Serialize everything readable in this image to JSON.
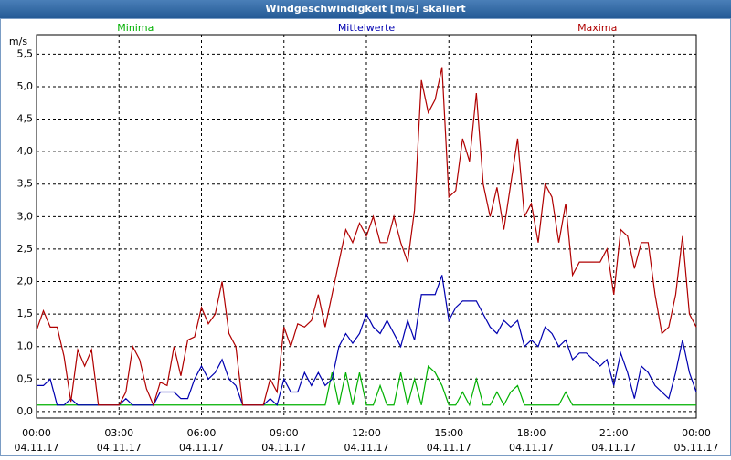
{
  "chart_data": {
    "type": "line",
    "title": "Windgeschwindigkeit [m/s] skaliert",
    "y_label": "m/s",
    "x": [
      0,
      0.25,
      0.5,
      0.75,
      1,
      1.25,
      1.5,
      1.75,
      2,
      2.25,
      2.5,
      2.75,
      3,
      3.25,
      3.5,
      3.75,
      4,
      4.25,
      4.5,
      4.75,
      5,
      5.25,
      5.5,
      5.75,
      6,
      6.25,
      6.5,
      6.75,
      7,
      7.25,
      7.5,
      7.75,
      8,
      8.25,
      8.5,
      8.75,
      9,
      9.25,
      9.5,
      9.75,
      10,
      10.25,
      10.5,
      10.75,
      11,
      11.25,
      11.5,
      11.75,
      12,
      12.25,
      12.5,
      12.75,
      13,
      13.25,
      13.5,
      13.75,
      14,
      14.25,
      14.5,
      14.75,
      15,
      15.25,
      15.5,
      15.75,
      16,
      16.25,
      16.5,
      16.75,
      17,
      17.25,
      17.5,
      17.75,
      18,
      18.25,
      18.5,
      18.75,
      19,
      19.25,
      19.5,
      19.75,
      20,
      20.25,
      20.5,
      20.75,
      21,
      21.25,
      21.5,
      21.75,
      22,
      22.25,
      22.5,
      22.75,
      23,
      23.25,
      23.5,
      23.75,
      24
    ],
    "series": [
      {
        "name": "Minima",
        "color": "#00b000",
        "values": [
          0.1,
          0.1,
          0.1,
          0.1,
          0.1,
          0.1,
          0.1,
          0.1,
          0.1,
          0.1,
          0.1,
          0.1,
          0.1,
          0.1,
          0.1,
          0.1,
          0.1,
          0.1,
          0.1,
          0.1,
          0.1,
          0.1,
          0.1,
          0.1,
          0.1,
          0.1,
          0.1,
          0.1,
          0.1,
          0.1,
          0.1,
          0.1,
          0.1,
          0.1,
          0.1,
          0.1,
          0.1,
          0.1,
          0.1,
          0.1,
          0.1,
          0.1,
          0.1,
          0.6,
          0.1,
          0.6,
          0.1,
          0.6,
          0.1,
          0.1,
          0.4,
          0.1,
          0.1,
          0.6,
          0.1,
          0.5,
          0.1,
          0.7,
          0.6,
          0.4,
          0.1,
          0.1,
          0.3,
          0.1,
          0.5,
          0.1,
          0.1,
          0.3,
          0.1,
          0.3,
          0.4,
          0.1,
          0.1,
          0.1,
          0.1,
          0.1,
          0.1,
          0.3,
          0.1,
          0.1,
          0.1,
          0.1,
          0.1,
          0.1,
          0.1,
          0.1,
          0.1,
          0.1,
          0.1,
          0.1,
          0.1,
          0.1,
          0.1,
          0.1,
          0.1,
          0.1,
          0.1
        ]
      },
      {
        "name": "Mittelwerte",
        "color": "#0000b0",
        "values": [
          0.4,
          0.4,
          0.5,
          0.1,
          0.1,
          0.2,
          0.1,
          0.1,
          0.1,
          0.1,
          0.1,
          0.1,
          0.1,
          0.2,
          0.1,
          0.1,
          0.1,
          0.1,
          0.3,
          0.3,
          0.3,
          0.2,
          0.2,
          0.5,
          0.7,
          0.5,
          0.6,
          0.8,
          0.5,
          0.4,
          0.1,
          0.1,
          0.1,
          0.1,
          0.2,
          0.1,
          0.5,
          0.3,
          0.3,
          0.6,
          0.4,
          0.6,
          0.4,
          0.5,
          1.0,
          1.2,
          1.05,
          1.2,
          1.5,
          1.3,
          1.2,
          1.4,
          1.2,
          1.0,
          1.4,
          1.1,
          1.8,
          1.8,
          1.8,
          2.1,
          1.4,
          1.6,
          1.7,
          1.7,
          1.7,
          1.5,
          1.3,
          1.2,
          1.4,
          1.3,
          1.4,
          1.0,
          1.1,
          1.0,
          1.3,
          1.2,
          1.0,
          1.1,
          0.8,
          0.9,
          0.9,
          0.8,
          0.7,
          0.8,
          0.4,
          0.9,
          0.6,
          0.2,
          0.7,
          0.6,
          0.4,
          0.3,
          0.2,
          0.6,
          1.1,
          0.6,
          0.3
        ]
      },
      {
        "name": "Maxima",
        "color": "#b00000",
        "values": [
          1.25,
          1.55,
          1.3,
          1.3,
          0.85,
          0.15,
          0.95,
          0.7,
          0.95,
          0.1,
          0.1,
          0.1,
          0.1,
          0.3,
          1.0,
          0.8,
          0.35,
          0.1,
          0.45,
          0.4,
          1.0,
          0.55,
          1.1,
          1.15,
          1.6,
          1.35,
          1.5,
          2.0,
          1.2,
          1.0,
          0.1,
          0.1,
          0.1,
          0.1,
          0.5,
          0.3,
          1.3,
          1.0,
          1.35,
          1.3,
          1.4,
          1.8,
          1.3,
          1.8,
          2.3,
          2.8,
          2.6,
          2.9,
          2.7,
          3.0,
          2.6,
          2.6,
          3.0,
          2.6,
          2.3,
          3.1,
          5.1,
          4.6,
          4.8,
          5.3,
          3.3,
          3.4,
          4.2,
          3.85,
          4.9,
          3.5,
          3.0,
          3.45,
          2.8,
          3.5,
          4.2,
          3.0,
          3.2,
          2.6,
          3.5,
          3.3,
          2.6,
          3.2,
          2.1,
          2.3,
          2.3,
          2.3,
          2.3,
          2.5,
          1.8,
          2.8,
          2.7,
          2.2,
          2.6,
          2.6,
          1.8,
          1.2,
          1.3,
          1.8,
          2.7,
          1.5,
          1.3
        ]
      }
    ],
    "xlim": [
      0,
      24
    ],
    "xticks": [
      {
        "value": 0,
        "label": "00:00",
        "date": "04.11.17"
      },
      {
        "value": 3,
        "label": "03:00",
        "date": "04.11.17"
      },
      {
        "value": 6,
        "label": "06:00",
        "date": "04.11.17"
      },
      {
        "value": 9,
        "label": "09:00",
        "date": "04.11.17"
      },
      {
        "value": 12,
        "label": "12:00",
        "date": "04.11.17"
      },
      {
        "value": 15,
        "label": "15:00",
        "date": "04.11.17"
      },
      {
        "value": 18,
        "label": "18:00",
        "date": "04.11.17"
      },
      {
        "value": 21,
        "label": "21:00",
        "date": "04.11.17"
      },
      {
        "value": 24,
        "label": "00:00",
        "date": "05.11.17"
      }
    ],
    "ylim": [
      -0.1,
      5.8
    ],
    "yticks": [
      {
        "value": 0,
        "label": "0,0"
      },
      {
        "value": 0.5,
        "label": "0,5"
      },
      {
        "value": 1,
        "label": "1,0"
      },
      {
        "value": 1.5,
        "label": "1,5"
      },
      {
        "value": 2,
        "label": "2,0"
      },
      {
        "value": 2.5,
        "label": "2,5"
      },
      {
        "value": 3,
        "label": "3,0"
      },
      {
        "value": 3.5,
        "label": "3,5"
      },
      {
        "value": 4,
        "label": "4,0"
      },
      {
        "value": 4.5,
        "label": "4,5"
      },
      {
        "value": 5,
        "label": "5,0"
      },
      {
        "value": 5.5,
        "label": "5,5"
      }
    ],
    "grid": true
  }
}
